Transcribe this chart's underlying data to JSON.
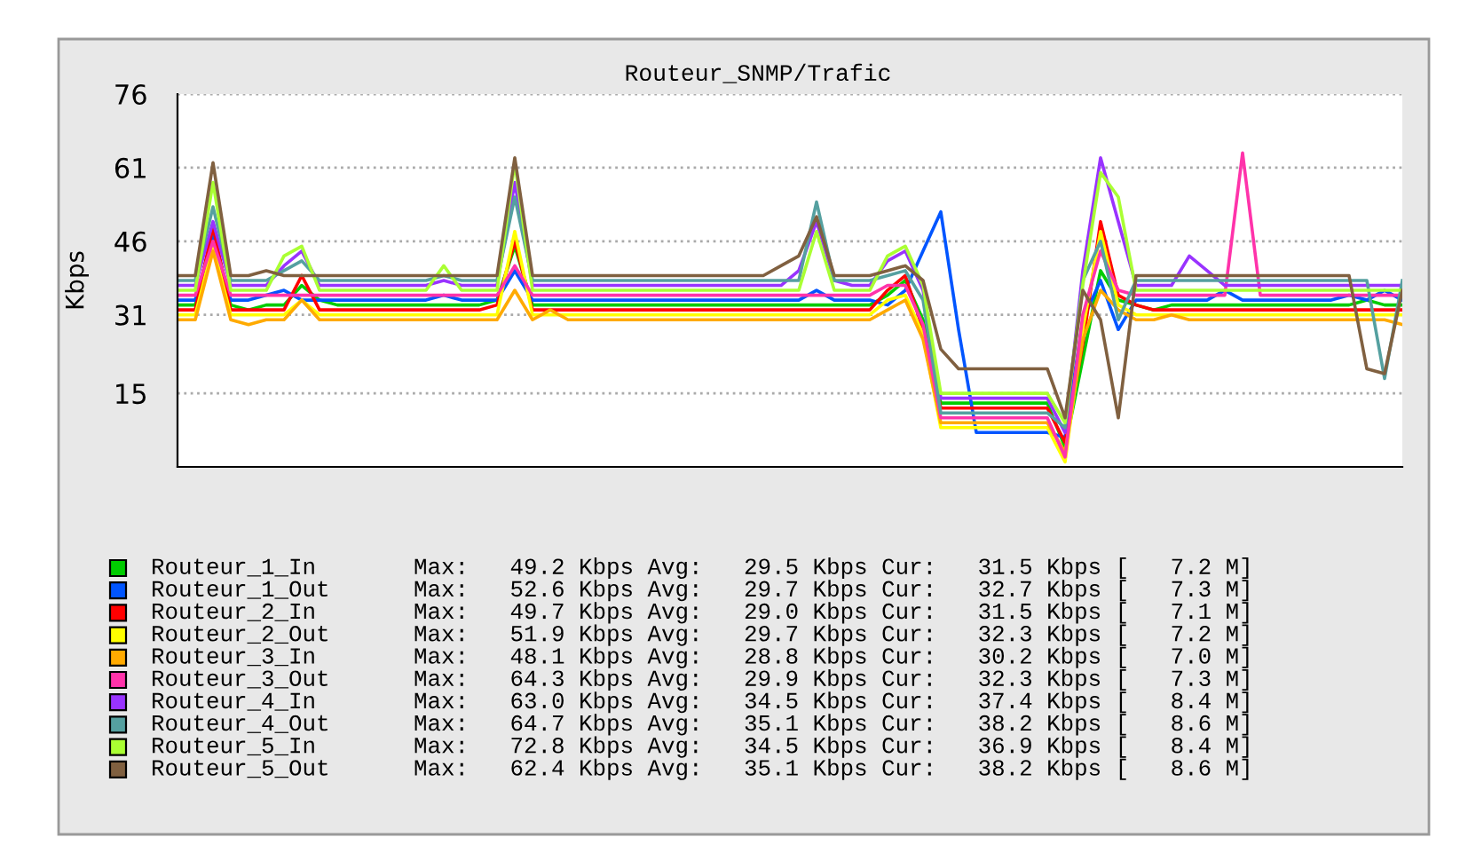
{
  "chart_data": {
    "type": "line",
    "title": "Routeur_SNMP/Trafic",
    "ylabel": "Kbps",
    "categories": [
      null,
      null,
      null,
      null,
      null,
      null,
      null,
      null,
      null,
      null,
      null,
      null,
      null,
      null,
      null,
      null,
      null,
      null,
      null,
      null,
      null,
      null,
      null,
      null,
      null,
      null,
      null,
      null,
      null,
      null,
      null,
      null,
      null,
      null,
      null,
      null,
      null,
      null,
      null,
      null,
      null,
      null,
      null,
      null,
      null,
      null,
      null,
      null,
      null,
      null,
      null,
      null,
      null,
      null,
      null,
      null,
      null,
      null,
      null,
      null,
      null,
      null,
      null,
      null,
      null,
      null,
      null,
      null,
      null,
      null
    ],
    "ylim": [
      0,
      76
    ],
    "yticks": [
      15,
      31,
      46,
      61,
      76
    ],
    "grid": "y",
    "legend": "bottom",
    "tick_labels": "y",
    "marker": "none",
    "line_style": "solid",
    "series": [
      {
        "name": "Routeur_1_In",
        "color": "#00cc00",
        "values": [
          33,
          33,
          48,
          33,
          32,
          33,
          33,
          37,
          34,
          33,
          33,
          33,
          33,
          33,
          33,
          33,
          33,
          33,
          34,
          45,
          33,
          33,
          33,
          33,
          33,
          33,
          33,
          33,
          33,
          33,
          33,
          33,
          33,
          33,
          33,
          33,
          33,
          33,
          33,
          33,
          35,
          38,
          30,
          13,
          13,
          13,
          13,
          13,
          13,
          13,
          4,
          22,
          40,
          34,
          33,
          32,
          33,
          33,
          33,
          33,
          33,
          33,
          33,
          33,
          33,
          33,
          33,
          34,
          33,
          33
        ]
      },
      {
        "name": "Routeur_1_Out",
        "color": "#0055ff",
        "values": [
          34,
          34,
          47,
          34,
          34,
          35,
          36,
          34,
          34,
          34,
          34,
          34,
          34,
          34,
          34,
          35,
          34,
          34,
          34,
          40,
          34,
          34,
          34,
          34,
          34,
          34,
          34,
          34,
          34,
          34,
          34,
          34,
          34,
          34,
          34,
          34,
          36,
          34,
          34,
          34,
          33,
          36,
          44,
          52,
          28,
          7,
          7,
          7,
          7,
          7,
          6,
          30,
          38,
          28,
          34,
          34,
          34,
          34,
          34,
          36,
          34,
          34,
          34,
          34,
          34,
          34,
          35,
          34,
          36,
          34
        ]
      },
      {
        "name": "Routeur_2_In",
        "color": "#ff0000",
        "values": [
          32,
          32,
          49,
          32,
          32,
          32,
          32,
          39,
          32,
          32,
          32,
          32,
          32,
          32,
          32,
          32,
          32,
          32,
          33,
          46,
          32,
          32,
          32,
          32,
          32,
          32,
          32,
          32,
          32,
          32,
          32,
          32,
          32,
          32,
          32,
          32,
          32,
          32,
          32,
          32,
          36,
          39,
          28,
          12,
          12,
          12,
          12,
          12,
          12,
          12,
          5,
          25,
          50,
          35,
          33,
          32,
          32,
          32,
          32,
          32,
          32,
          32,
          32,
          32,
          32,
          32,
          32,
          32,
          32,
          32
        ]
      },
      {
        "name": "Routeur_2_Out",
        "color": "#ffff00",
        "values": [
          31,
          31,
          45,
          31,
          31,
          31,
          31,
          34,
          31,
          31,
          31,
          31,
          31,
          31,
          31,
          31,
          31,
          31,
          31,
          48,
          31,
          31,
          31,
          31,
          31,
          31,
          31,
          31,
          31,
          31,
          31,
          31,
          31,
          31,
          31,
          31,
          31,
          31,
          31,
          31,
          34,
          35,
          27,
          8,
          8,
          8,
          8,
          8,
          8,
          8,
          1,
          28,
          48,
          33,
          31,
          31,
          31,
          31,
          31,
          31,
          31,
          31,
          31,
          31,
          31,
          31,
          31,
          31,
          31,
          31
        ]
      },
      {
        "name": "Routeur_3_In",
        "color": "#ffaa00",
        "values": [
          30,
          30,
          44,
          30,
          29,
          30,
          30,
          34,
          30,
          30,
          30,
          30,
          30,
          30,
          30,
          30,
          30,
          30,
          30,
          36,
          30,
          32,
          30,
          30,
          30,
          30,
          30,
          30,
          30,
          30,
          30,
          30,
          30,
          30,
          30,
          30,
          30,
          30,
          30,
          30,
          32,
          34,
          26,
          9,
          9,
          9,
          9,
          9,
          9,
          9,
          3,
          26,
          36,
          32,
          30,
          30,
          31,
          30,
          30,
          30,
          30,
          30,
          30,
          30,
          30,
          30,
          30,
          30,
          30,
          29
        ]
      },
      {
        "name": "Routeur_3_Out",
        "color": "#ff33aa",
        "values": [
          35,
          35,
          46,
          35,
          35,
          35,
          35,
          35,
          35,
          35,
          35,
          35,
          35,
          35,
          35,
          35,
          35,
          35,
          35,
          41,
          35,
          35,
          35,
          35,
          35,
          35,
          35,
          35,
          35,
          35,
          35,
          35,
          35,
          35,
          35,
          35,
          35,
          35,
          35,
          35,
          37,
          37,
          29,
          10,
          10,
          10,
          10,
          10,
          10,
          10,
          2,
          31,
          44,
          36,
          35,
          35,
          35,
          35,
          35,
          35,
          64,
          35,
          35,
          35,
          35,
          35,
          35,
          35,
          35,
          35
        ]
      },
      {
        "name": "Routeur_4_In",
        "color": "#9933ff",
        "values": [
          37,
          37,
          50,
          37,
          37,
          37,
          41,
          44,
          37,
          37,
          37,
          37,
          37,
          37,
          37,
          38,
          37,
          37,
          37,
          58,
          37,
          37,
          37,
          37,
          37,
          37,
          37,
          37,
          37,
          37,
          37,
          37,
          37,
          37,
          37,
          40,
          50,
          38,
          37,
          37,
          42,
          44,
          36,
          14,
          14,
          14,
          14,
          14,
          14,
          14,
          7,
          40,
          63,
          50,
          37,
          37,
          37,
          43,
          40,
          37,
          37,
          37,
          37,
          37,
          37,
          37,
          37,
          37,
          37,
          37
        ]
      },
      {
        "name": "Routeur_4_Out",
        "color": "#55a0a0",
        "values": [
          38,
          38,
          53,
          38,
          38,
          38,
          40,
          42,
          38,
          38,
          38,
          38,
          38,
          38,
          38,
          39,
          38,
          38,
          38,
          55,
          38,
          38,
          38,
          38,
          38,
          38,
          38,
          38,
          38,
          38,
          38,
          38,
          38,
          38,
          38,
          38,
          54,
          38,
          38,
          38,
          39,
          40,
          34,
          11,
          11,
          11,
          11,
          11,
          11,
          11,
          8,
          38,
          46,
          30,
          38,
          38,
          38,
          38,
          38,
          38,
          38,
          38,
          38,
          38,
          38,
          38,
          38,
          38,
          18,
          38
        ]
      },
      {
        "name": "Routeur_5_In",
        "color": "#aaff33",
        "values": [
          36,
          36,
          58,
          36,
          36,
          36,
          43,
          45,
          36,
          36,
          36,
          36,
          36,
          36,
          36,
          41,
          36,
          36,
          36,
          62,
          36,
          36,
          36,
          36,
          36,
          36,
          36,
          36,
          36,
          36,
          36,
          36,
          36,
          36,
          36,
          36,
          48,
          36,
          36,
          36,
          43,
          45,
          37,
          15,
          15,
          15,
          15,
          15,
          15,
          15,
          9,
          37,
          60,
          55,
          36,
          36,
          36,
          36,
          36,
          36,
          36,
          36,
          36,
          36,
          36,
          36,
          36,
          36,
          36,
          36
        ]
      },
      {
        "name": "Routeur_5_Out",
        "color": "#806040",
        "values": [
          39,
          39,
          62,
          39,
          39,
          40,
          39,
          39,
          39,
          39,
          39,
          39,
          39,
          39,
          39,
          39,
          39,
          39,
          39,
          63,
          39,
          39,
          39,
          39,
          39,
          39,
          39,
          39,
          39,
          39,
          39,
          39,
          39,
          39,
          41,
          43,
          51,
          39,
          39,
          39,
          40,
          41,
          38,
          24,
          20,
          20,
          20,
          20,
          20,
          20,
          10,
          36,
          30,
          10,
          39,
          39,
          39,
          39,
          39,
          39,
          39,
          39,
          39,
          39,
          39,
          39,
          39,
          20,
          19,
          36
        ]
      }
    ],
    "annotations": [
      "Max:   49.2 Kbps Avg:   29.5 Kbps Cur:   31.5 Kbps [   7.2 M]",
      "Max:   52.6 Kbps Avg:   29.7 Kbps Cur:   32.7 Kbps [   7.3 M]",
      "Max:   49.7 Kbps Avg:   29.0 Kbps Cur:   31.5 Kbps [   7.1 M]",
      "Max:   51.9 Kbps Avg:   29.7 Kbps Cur:   32.3 Kbps [   7.2 M]",
      "Max:   48.1 Kbps Avg:   28.8 Kbps Cur:   30.2 Kbps [   7.0 M]",
      "Max:   64.3 Kbps Avg:   29.9 Kbps Cur:   32.3 Kbps [   7.3 M]",
      "Max:   63.0 Kbps Avg:   34.5 Kbps Cur:   37.4 Kbps [   8.4 M]",
      "Max:   64.7 Kbps Avg:   35.1 Kbps Cur:   38.2 Kbps [   8.6 M]",
      "Max:   72.8 Kbps Avg:   34.5 Kbps Cur:   36.9 Kbps [   8.4 M]",
      "Max:   62.4 Kbps Avg:   35.1 Kbps Cur:   38.2 Kbps [   8.6 M]"
    ]
  }
}
